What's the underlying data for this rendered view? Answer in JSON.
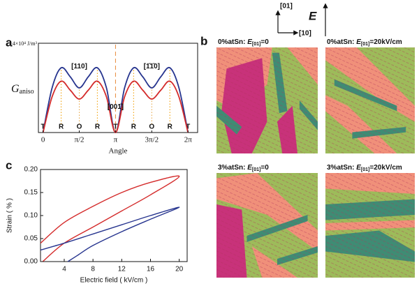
{
  "panel_labels": [
    "a",
    "b",
    "c"
  ],
  "chart_data": [
    {
      "type": "line",
      "ylabel": "G",
      "ylabel_sub": "aniso",
      "xlabel": "Angle",
      "x": [
        0,
        0.3927,
        0.7854,
        1.1781,
        1.5708,
        1.9635,
        2.3562,
        2.7489,
        3.1416,
        3.5343,
        3.927,
        4.3197,
        4.7124,
        5.1051,
        5.4978,
        5.8905,
        6.2832
      ],
      "series": [
        {
          "color": "#27358f",
          "values": [
            0,
            2.0,
            2.9,
            2.5,
            2.0,
            2.5,
            2.9,
            2.0,
            0,
            2.0,
            2.9,
            2.5,
            2.0,
            2.5,
            2.9,
            2.0,
            0
          ]
        },
        {
          "color": "#d42b2b",
          "values": [
            0,
            1.6,
            2.3,
            1.9,
            1.5,
            1.9,
            2.3,
            1.6,
            0,
            1.6,
            2.3,
            1.9,
            1.5,
            1.9,
            2.3,
            1.6,
            0
          ]
        }
      ],
      "xlim": [
        -0.2,
        6.7
      ],
      "ylim": [
        0,
        4
      ],
      "xticks": [
        0,
        {
          "value": 1.5708,
          "label": "π/2"
        },
        {
          "value": 3.1416,
          "label": "π"
        },
        {
          "value": 4.7124,
          "label": "3π/2"
        },
        {
          "value": 6.2832,
          "label": "2π"
        }
      ],
      "yticks": [
        {
          "value": 4,
          "label": "4×10⁴ J/m³"
        }
      ],
      "markers": [
        {
          "label": "T",
          "x": 0
        },
        {
          "label": "R",
          "x": 0.7854
        },
        {
          "label": "O",
          "x": 1.5708
        },
        {
          "label": "R",
          "x": 2.3562
        },
        {
          "label": "T",
          "x": 3.1416
        },
        {
          "label": "R",
          "x": 3.927
        },
        {
          "label": "O",
          "x": 4.7124
        },
        {
          "label": "R",
          "x": 5.4978
        },
        {
          "label": "T",
          "x": 6.2832
        }
      ],
      "annotations": [
        {
          "text": "[110]",
          "x": 1.5708,
          "y": 2.95
        },
        {
          "text": "[001̄]",
          "x": 3.1416,
          "y": 1.15
        },
        {
          "text": "[1̄1̄0]",
          "x": 4.7124,
          "y": 2.95
        }
      ]
    },
    {
      "type": "line",
      "xlabel": "Electric field ( kV/cm )",
      "ylabel": "Strain ( % )",
      "xlim": [
        0.7,
        21.1
      ],
      "ylim": [
        0,
        0.2
      ],
      "xticks": [
        4,
        8,
        12,
        16,
        20
      ],
      "yticks": [
        {
          "value": 0,
          "label": "0.00"
        },
        {
          "value": 0.05,
          "label": "0.05"
        },
        {
          "value": 0.1,
          "label": "0.10"
        },
        {
          "value": 0.15,
          "label": "0.15"
        },
        {
          "value": 0.2,
          "label": "0.20"
        }
      ],
      "series": [
        {
          "color": "#d42b2b",
          "x": [
            1.0,
            4,
            8,
            12,
            16,
            20,
            16,
            12,
            8,
            4,
            0.7
          ],
          "values": [
            0.0,
            0.04,
            0.075,
            0.11,
            0.145,
            0.185,
            0.172,
            0.15,
            0.12,
            0.085,
            0.04
          ]
        },
        {
          "color": "#27358f",
          "x": [
            4.5,
            6,
            8,
            12,
            16,
            20,
            16,
            12,
            8,
            4,
            0.7
          ],
          "values": [
            0.0,
            0.015,
            0.035,
            0.065,
            0.092,
            0.118,
            0.1,
            0.08,
            0.06,
            0.04,
            0.025
          ]
        }
      ]
    }
  ],
  "axes_icon": {
    "y": "[01]",
    "x": "[10]",
    "field": "E"
  },
  "domain_maps": [
    {
      "prefix": "0%atSn: ",
      "field": "E",
      "sub": "[01]",
      "suffix": "=0"
    },
    {
      "prefix": "0%atSn: ",
      "field": "E",
      "sub": "[01]",
      "suffix": "=20kV/cm"
    },
    {
      "prefix": "3%atSn: ",
      "field": "E",
      "sub": "[01]",
      "suffix": "=0"
    },
    {
      "prefix": "3%atSn: ",
      "field": "E",
      "sub": "[01]",
      "suffix": "=20kV/cm"
    }
  ]
}
